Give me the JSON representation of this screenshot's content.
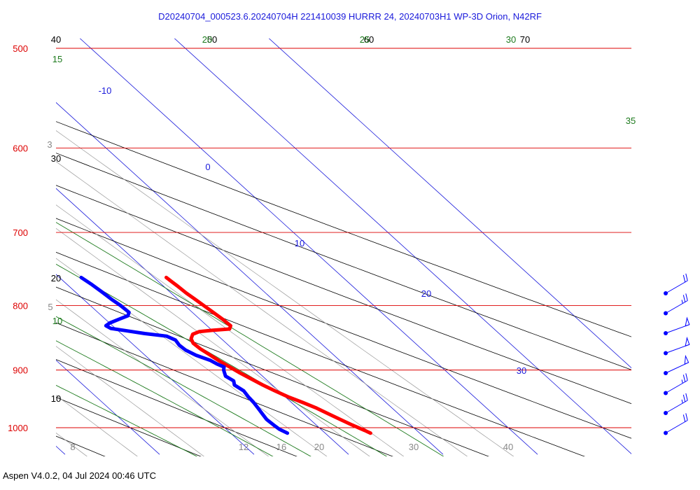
{
  "header": {
    "title": "D20240704_000523.6.20240704H 221410039 HURRR 24, 20240703H1 WP-3D Orion, N42RF"
  },
  "footer": {
    "text": "Aspen V4.0.2, 04 Jul 2024  00:46 UTC"
  },
  "chart_data": {
    "type": "skew-t log-p",
    "pressure_levels": [
      500,
      600,
      700,
      800,
      900,
      1000
    ],
    "temperature_ticks": [
      8,
      12,
      16,
      20,
      30,
      40
    ],
    "isotherm_labels": [
      -10,
      0,
      10,
      20,
      30
    ],
    "dry_adiabat_labels": [
      {
        "text": "10",
        "p": 1000
      },
      {
        "text": "20",
        "p": 800
      },
      {
        "text": "30",
        "p": 600
      },
      {
        "text": "40",
        "p": 500
      },
      {
        "text": "50",
        "p": 500
      },
      {
        "text": "60",
        "p": 500
      },
      {
        "text": "70",
        "p": 500
      }
    ],
    "moist_adiabat_labels": [
      {
        "text": "10",
        "p": 835
      },
      {
        "text": "15",
        "p": 500
      },
      {
        "text": "20",
        "p": 500
      },
      {
        "text": "25",
        "p": 500
      },
      {
        "text": "30",
        "p": 500
      },
      {
        "text": "35",
        "p": 545
      }
    ],
    "mixing_ratio_labels": [
      {
        "text": "3",
        "p": 600
      },
      {
        "text": "5",
        "p": 810
      }
    ],
    "colors": {
      "isobar": "#dd0000",
      "isotherm": "#1a1adb",
      "dry_adiabat": "#000000",
      "moist_adiabat": "#1d7a1d",
      "mixing_ratio": "#999999",
      "temperature": "#ff0000",
      "dewpoint": "#0000ff"
    },
    "series": [
      {
        "label": "temperature",
        "points": [
          [
            760,
            21.3
          ],
          [
            766,
            21.4
          ],
          [
            772,
            21.5
          ],
          [
            782,
            21.6
          ],
          [
            790,
            21.8
          ],
          [
            800,
            22.0
          ],
          [
            810,
            22.2
          ],
          [
            820,
            22.4
          ],
          [
            830,
            22.5
          ],
          [
            835,
            22.0
          ],
          [
            837,
            20.0
          ],
          [
            839,
            18.5
          ],
          [
            843,
            17.5
          ],
          [
            850,
            16.8
          ],
          [
            857,
            16.5
          ],
          [
            866,
            16.6
          ],
          [
            875,
            16.9
          ],
          [
            885,
            17.2
          ],
          [
            895,
            17.6
          ],
          [
            905,
            18.0
          ],
          [
            915,
            18.5
          ],
          [
            925,
            19.0
          ],
          [
            935,
            19.6
          ],
          [
            945,
            20.3
          ],
          [
            955,
            21.2
          ],
          [
            965,
            22.0
          ],
          [
            975,
            22.6
          ],
          [
            985,
            23.2
          ],
          [
            995,
            23.8
          ],
          [
            1005,
            24.5
          ],
          [
            1010,
            24.8
          ]
        ]
      },
      {
        "label": "dewpoint",
        "points": [
          [
            760,
            12.3
          ],
          [
            770,
            12.6
          ],
          [
            780,
            12.8
          ],
          [
            792,
            13.0
          ],
          [
            800,
            13.2
          ],
          [
            810,
            13.3
          ],
          [
            815,
            12.8
          ],
          [
            820,
            11.5
          ],
          [
            826,
            10.0
          ],
          [
            830,
            9.3
          ],
          [
            834,
            9.5
          ],
          [
            838,
            11.0
          ],
          [
            842,
            12.5
          ],
          [
            846,
            14.5
          ],
          [
            852,
            15.0
          ],
          [
            860,
            14.8
          ],
          [
            868,
            14.9
          ],
          [
            876,
            15.4
          ],
          [
            884,
            16.3
          ],
          [
            890,
            16.6
          ],
          [
            895,
            17.0
          ],
          [
            900,
            16.6
          ],
          [
            910,
            16.1
          ],
          [
            918,
            16.4
          ],
          [
            925,
            16.0
          ],
          [
            935,
            16.3
          ],
          [
            945,
            16.1
          ],
          [
            955,
            16.0
          ],
          [
            965,
            15.8
          ],
          [
            975,
            15.6
          ],
          [
            985,
            15.4
          ],
          [
            995,
            15.5
          ],
          [
            1003,
            15.6
          ],
          [
            1010,
            16.0
          ]
        ]
      }
    ],
    "wind_barbs": [
      {
        "speed_kt": 20,
        "direction_deg": 60
      },
      {
        "speed_kt": 25,
        "direction_deg": 60
      },
      {
        "speed_kt": 50,
        "direction_deg": 70
      },
      {
        "speed_kt": 50,
        "direction_deg": 70
      },
      {
        "speed_kt": 50,
        "direction_deg": 65
      },
      {
        "speed_kt": 25,
        "direction_deg": 60
      },
      {
        "speed_kt": 25,
        "direction_deg": 60
      },
      {
        "speed_kt": 20,
        "direction_deg": 60
      }
    ]
  }
}
